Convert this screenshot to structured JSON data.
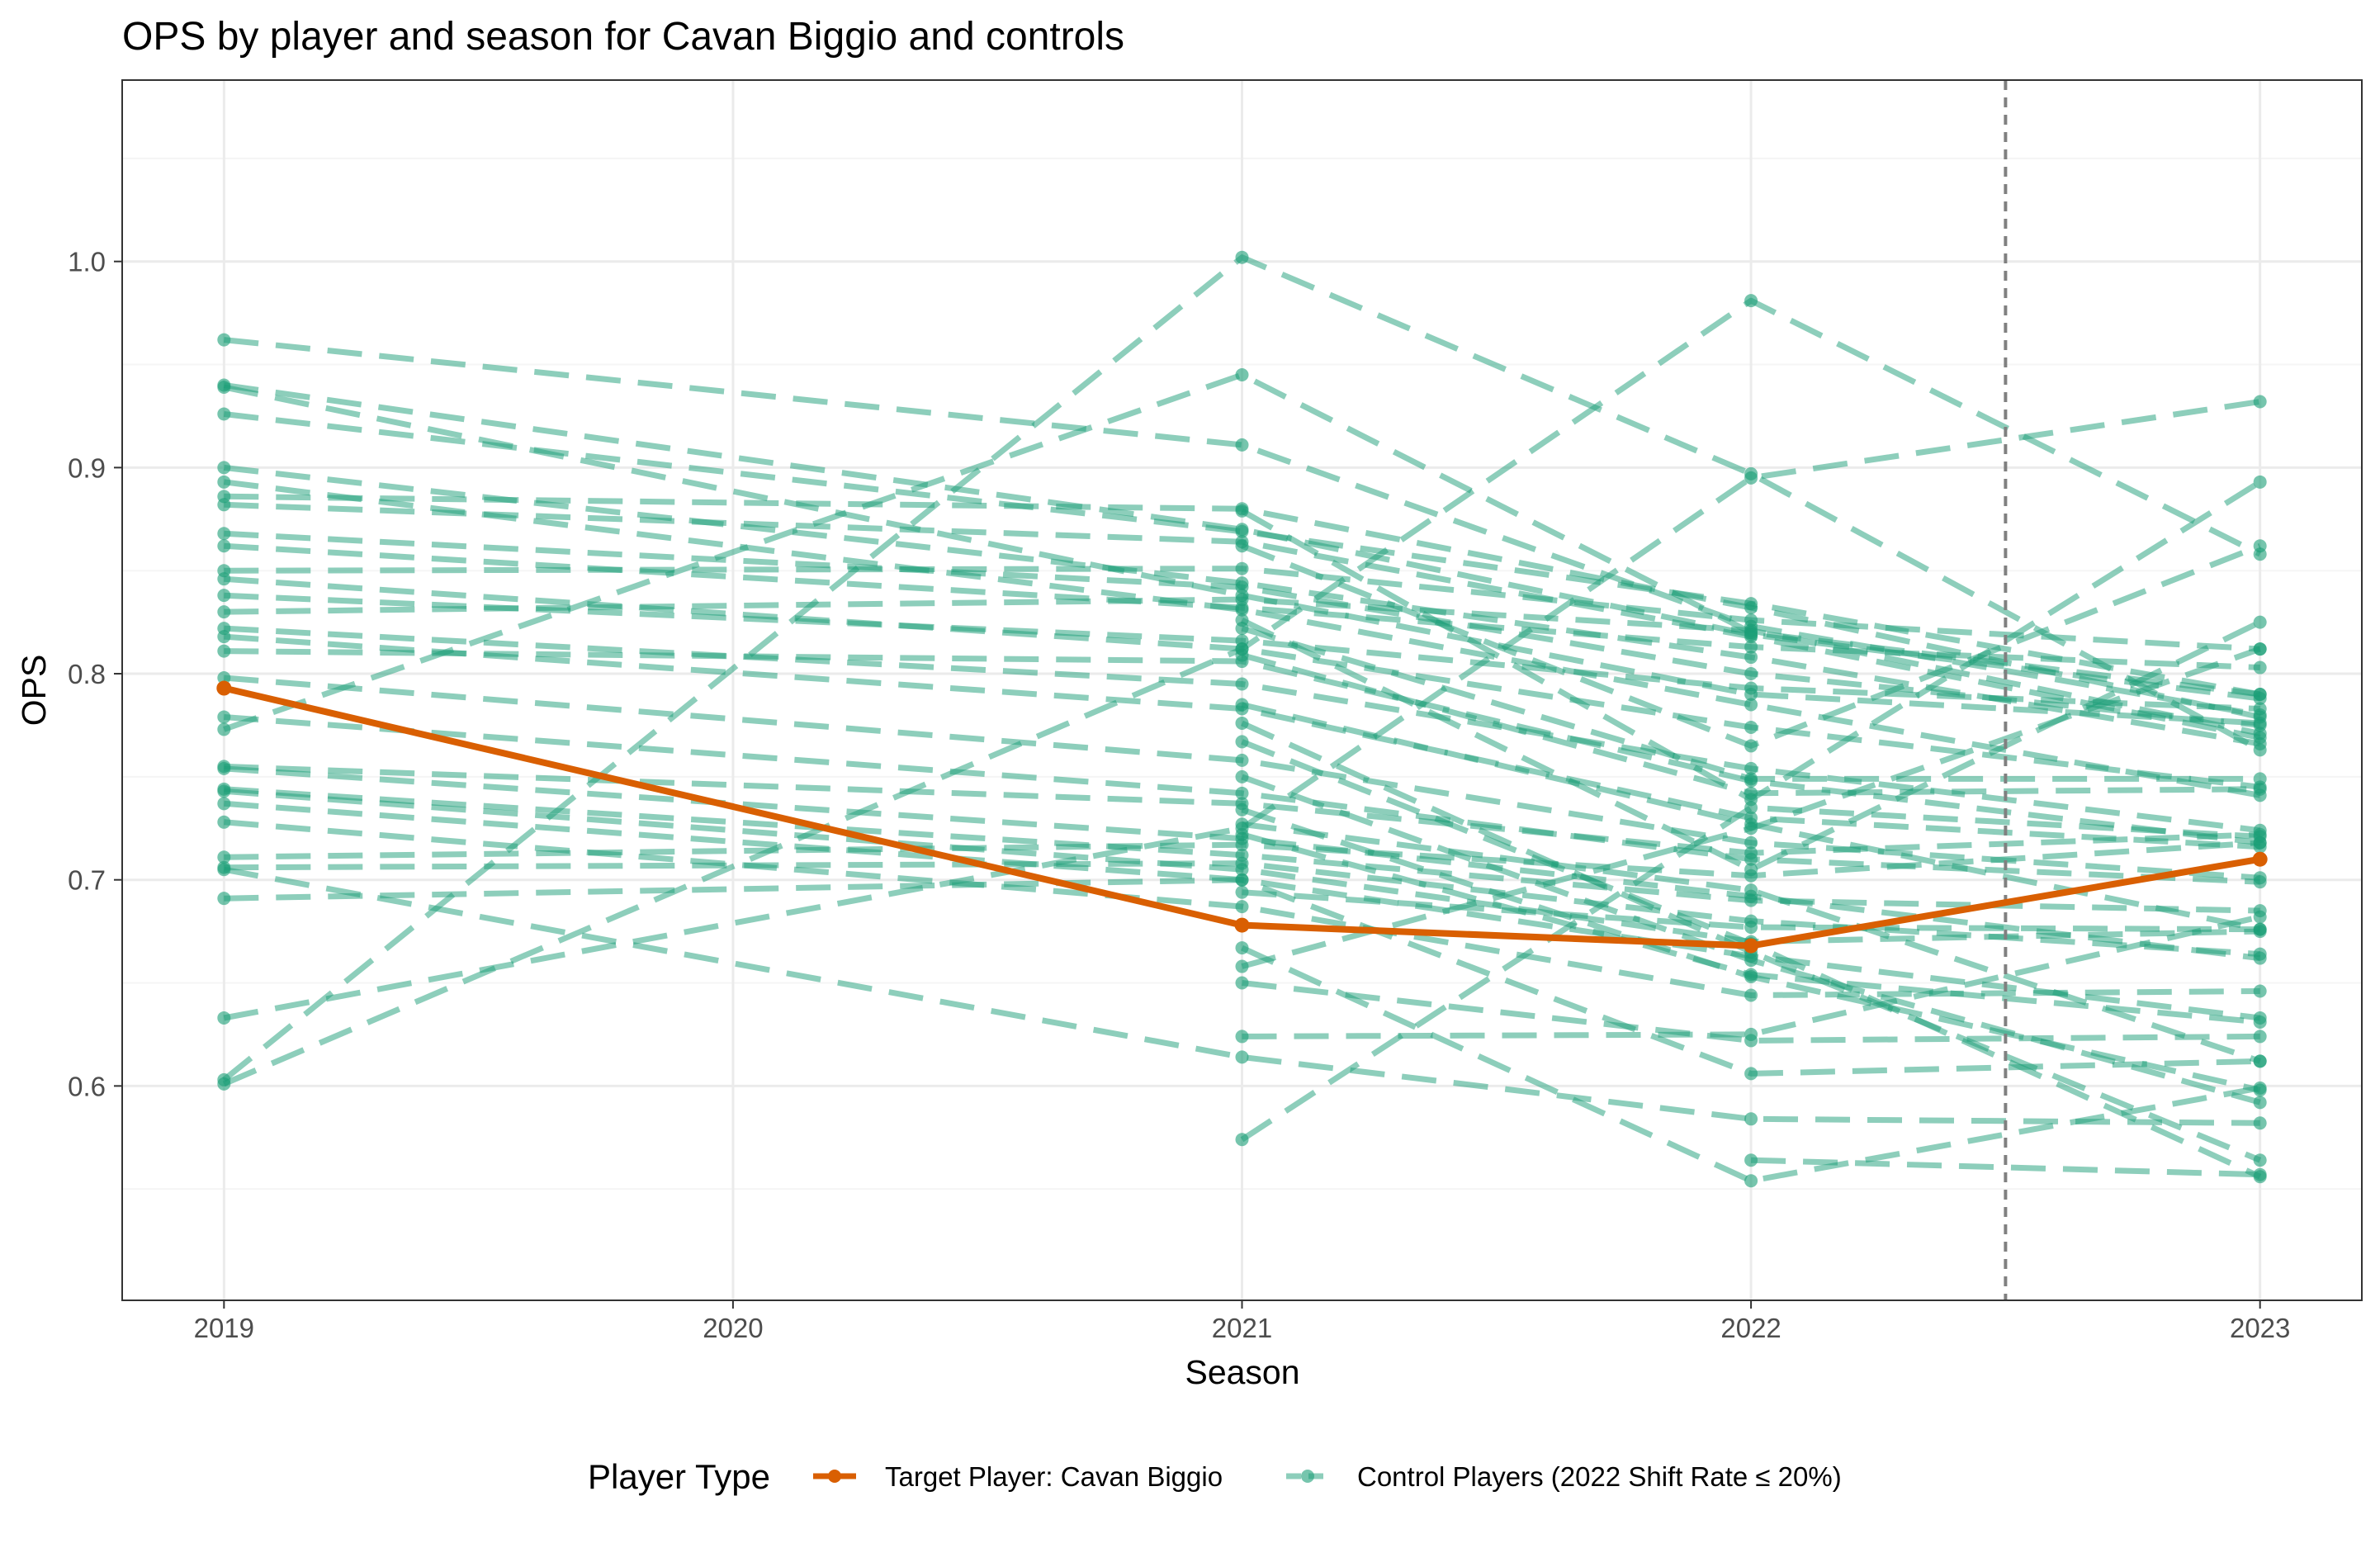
{
  "chart_data": {
    "type": "line",
    "title": "OPS by player and season for Cavan Biggio and controls",
    "xlabel": "Season",
    "ylabel": "OPS",
    "x_ticks": [
      "2019",
      "2020",
      "2021",
      "2022",
      "2023"
    ],
    "y_ticks": [
      "0.6",
      "0.7",
      "0.8",
      "0.9",
      "1.0"
    ],
    "xlim": [
      2018.8,
      2023.2
    ],
    "ylim": [
      0.496,
      1.088
    ],
    "grid": true,
    "reference_line": {
      "x": 2022.5,
      "style": "dashed",
      "color": "#808080"
    },
    "legend": {
      "title": "Player Type",
      "position": "bottom",
      "entries": [
        {
          "label": "Target Player: Cavan Biggio",
          "color": "#D95F02"
        },
        {
          "label": "Control Players (2022 Shift Rate ≤ 20%)",
          "color": "#1B9E77"
        }
      ]
    },
    "colors": {
      "target": "#D95F02",
      "control": "#1B9E77",
      "grid_major": "#EBEBEB",
      "grid_minor": "#F5F5F5"
    },
    "target_series": {
      "x": [
        2019,
        2021,
        2022,
        2023
      ],
      "y": [
        0.793,
        0.678,
        0.668,
        0.71
      ]
    },
    "control_series": [
      {
        "x": [
          2019,
          2021,
          2022,
          2023
        ],
        "y": [
          0.962,
          0.911,
          0.823,
          0.78
        ]
      },
      {
        "x": [
          2019,
          2021,
          2022,
          2023
        ],
        "y": [
          0.94,
          0.87,
          0.819,
          0.788
        ]
      },
      {
        "x": [
          2019,
          2021,
          2022,
          2023
        ],
        "y": [
          0.939,
          0.838,
          0.79,
          0.776
        ]
      },
      {
        "x": [
          2019,
          2021,
          2022,
          2023
        ],
        "y": [
          0.926,
          0.869,
          0.834,
          0.79
        ]
      },
      {
        "x": [
          2019,
          2021,
          2022,
          2023
        ],
        "y": [
          0.9,
          0.844,
          0.808,
          0.766
        ]
      },
      {
        "x": [
          2019,
          2021,
          2022,
          2023
        ],
        "y": [
          0.893,
          0.831,
          0.785,
          0.741
        ]
      },
      {
        "x": [
          2019,
          2021,
          2022,
          2023
        ],
        "y": [
          0.886,
          0.88,
          0.832,
          0.779
        ]
      },
      {
        "x": [
          2019,
          2021,
          2022,
          2023
        ],
        "y": [
          0.882,
          0.864,
          0.818,
          0.769
        ]
      },
      {
        "x": [
          2019,
          2021,
          2022,
          2023
        ],
        "y": [
          0.868,
          0.842,
          0.8,
          0.775
        ]
      },
      {
        "x": [
          2019,
          2021,
          2022,
          2023
        ],
        "y": [
          0.862,
          0.832,
          0.813,
          0.803
        ]
      },
      {
        "x": [
          2019,
          2021,
          2022,
          2023
        ],
        "y": [
          0.85,
          0.851,
          0.826,
          0.812
        ]
      },
      {
        "x": [
          2019,
          2021,
          2022,
          2023
        ],
        "y": [
          0.846,
          0.812,
          0.774,
          0.745
        ]
      },
      {
        "x": [
          2019,
          2021,
          2022,
          2023
        ],
        "y": [
          0.838,
          0.816,
          0.793,
          0.783
        ]
      },
      {
        "x": [
          2019,
          2021,
          2022,
          2023
        ],
        "y": [
          0.83,
          0.836,
          0.821,
          0.771
        ]
      },
      {
        "x": [
          2019,
          2021,
          2022,
          2023
        ],
        "y": [
          0.822,
          0.795,
          0.754,
          0.724
        ]
      },
      {
        "x": [
          2019,
          2021,
          2022,
          2023
        ],
        "y": [
          0.818,
          0.783,
          0.73,
          0.716
        ]
      },
      {
        "x": [
          2019,
          2021,
          2022,
          2023
        ],
        "y": [
          0.811,
          0.806,
          0.748,
          0.718
        ]
      },
      {
        "x": [
          2019,
          2021,
          2022,
          2023
        ],
        "y": [
          0.798,
          0.758,
          0.718,
          0.701
        ]
      },
      {
        "x": [
          2019,
          2021,
          2022,
          2023
        ],
        "y": [
          0.779,
          0.742,
          0.71,
          0.699
        ]
      },
      {
        "x": [
          2019,
          2021,
          2022,
          2023
        ],
        "y": [
          0.773,
          0.945,
          0.82,
          0.79
        ]
      },
      {
        "x": [
          2019,
          2021,
          2022,
          2023
        ],
        "y": [
          0.755,
          0.737,
          0.713,
          0.722
        ]
      },
      {
        "x": [
          2019,
          2021,
          2022,
          2023
        ],
        "y": [
          0.754,
          0.72,
          0.692,
          0.662
        ]
      },
      {
        "x": [
          2019,
          2021,
          2022,
          2023
        ],
        "y": [
          0.744,
          0.712,
          0.69,
          0.685
        ]
      },
      {
        "x": [
          2019,
          2021,
          2022,
          2023
        ],
        "y": [
          0.743,
          0.705,
          0.67,
          0.675
        ]
      },
      {
        "x": [
          2019,
          2021,
          2022,
          2023
        ],
        "y": [
          0.737,
          0.7,
          0.663,
          0.633
        ]
      },
      {
        "x": [
          2019,
          2021,
          2022,
          2023
        ],
        "y": [
          0.728,
          0.687,
          0.644,
          0.646
        ]
      },
      {
        "x": [
          2019,
          2021,
          2022,
          2023
        ],
        "y": [
          0.711,
          0.717,
          0.702,
          0.718
        ]
      },
      {
        "x": [
          2019,
          2021,
          2022,
          2023
        ],
        "y": [
          0.706,
          0.708,
          0.68,
          0.664
        ]
      },
      {
        "x": [
          2019,
          2021,
          2022,
          2023
        ],
        "y": [
          0.705,
          0.614,
          0.584,
          0.582
        ]
      },
      {
        "x": [
          2019,
          2021,
          2022,
          2023
        ],
        "y": [
          0.691,
          0.7,
          0.606,
          0.612
        ]
      },
      {
        "x": [
          2019,
          2021,
          2022,
          2023
        ],
        "y": [
          0.633,
          0.725,
          0.895,
          0.932
        ]
      },
      {
        "x": [
          2019,
          2021,
          2022,
          2023
        ],
        "y": [
          0.603,
          1.002,
          0.897,
          0.763
        ]
      },
      {
        "x": [
          2019,
          2021,
          2022,
          2023
        ],
        "y": [
          0.601,
          0.812,
          0.981,
          0.858
        ]
      },
      {
        "x": [
          2021,
          2022,
          2023
        ],
        "y": [
          0.879,
          0.739,
          0.893
        ]
      },
      {
        "x": [
          2021,
          2022,
          2023
        ],
        "y": [
          0.862,
          0.765,
          0.862
        ]
      },
      {
        "x": [
          2021,
          2022,
          2023
        ],
        "y": [
          0.826,
          0.705,
          0.825
        ]
      },
      {
        "x": [
          2021,
          2022,
          2023
        ],
        "y": [
          0.822,
          0.749,
          0.749
        ]
      },
      {
        "x": [
          2021,
          2022,
          2023
        ],
        "y": [
          0.809,
          0.742,
          0.744
        ]
      },
      {
        "x": [
          2021,
          2022,
          2023
        ],
        "y": [
          0.785,
          0.727,
          0.676
        ]
      },
      {
        "x": [
          2021,
          2022,
          2023
        ],
        "y": [
          0.776,
          0.665,
          0.564
        ]
      },
      {
        "x": [
          2021,
          2022,
          2023
        ],
        "y": [
          0.767,
          0.669,
          0.556
        ]
      },
      {
        "x": [
          2021,
          2022,
          2023
        ],
        "y": [
          0.75,
          0.661,
          0.592
        ]
      },
      {
        "x": [
          2021,
          2022,
          2023
        ],
        "y": [
          0.734,
          0.653,
          0.598
        ]
      },
      {
        "x": [
          2021,
          2022,
          2023
        ],
        "y": [
          0.727,
          0.695,
          0.612
        ]
      },
      {
        "x": [
          2021,
          2022,
          2023
        ],
        "y": [
          0.722,
          0.654,
          0.631
        ]
      },
      {
        "x": [
          2021,
          2022,
          2023
        ],
        "y": [
          0.694,
          0.677,
          0.676
        ]
      },
      {
        "x": [
          2021,
          2022,
          2023
        ],
        "y": [
          0.667,
          0.554,
          0.599
        ]
      },
      {
        "x": [
          2021,
          2022,
          2023
        ],
        "y": [
          0.658,
          0.725,
          0.812
        ]
      },
      {
        "x": [
          2021,
          2022,
          2023
        ],
        "y": [
          0.65,
          0.622,
          0.624
        ]
      },
      {
        "x": [
          2021,
          2022,
          2023
        ],
        "y": [
          0.624,
          0.625,
          0.682
        ]
      },
      {
        "x": [
          2021,
          2022,
          2023
        ],
        "y": [
          0.574,
          0.735,
          0.721
        ]
      },
      {
        "x": [
          2022,
          2023
        ],
        "y": [
          0.564,
          0.557
        ]
      }
    ]
  }
}
